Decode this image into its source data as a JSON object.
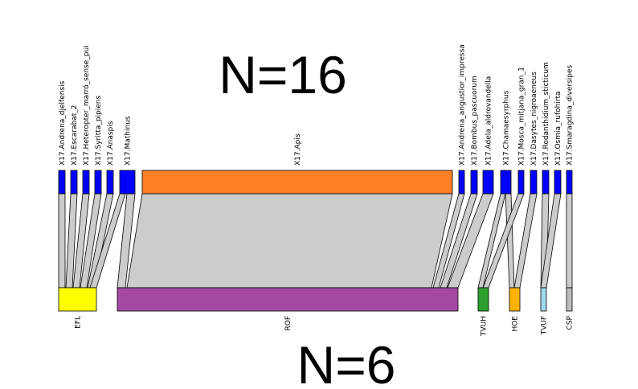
{
  "title_top": "N=16",
  "title_bottom": "N=6",
  "colors": {
    "link": "#cccccc",
    "bar_border": "#000000",
    "top_default": "#0000ff"
  },
  "top_nodes": [
    {
      "label": "X17.Andrena_djelfensis",
      "color": "#0000ff"
    },
    {
      "label": "X17.Escarabat_2",
      "color": "#0000ff"
    },
    {
      "label": "X17.Heteropter_marró_sense_pui",
      "color": "#0000ff"
    },
    {
      "label": "X17.Syritta_pipiens",
      "color": "#0000ff"
    },
    {
      "label": "X17.Anaspis",
      "color": "#0000ff"
    },
    {
      "label": "X17.Mathinus",
      "color": "#0000ff"
    },
    {
      "label": "X17.Apis",
      "color": "#ff7f24"
    },
    {
      "label": "X17.Andrena_angustior_impressa",
      "color": "#0000ff"
    },
    {
      "label": "X17.Bombus_pascuorum",
      "color": "#0000ff"
    },
    {
      "label": "X17.Adela_aldrovandella",
      "color": "#0000ff"
    },
    {
      "label": "X17.Chamaesyrphus",
      "color": "#0000ff"
    },
    {
      "label": "X17.Mosca_mitjana_gran_1",
      "color": "#0000ff"
    },
    {
      "label": "X17.Dasytes_nigroaeneus",
      "color": "#0000ff"
    },
    {
      "label": "X17.Rodanthidium_sticticum",
      "color": "#0000ff"
    },
    {
      "label": "X17.Osmia_rufohirta",
      "color": "#0000ff"
    },
    {
      "label": "X17.Smaragdina_diversipes",
      "color": "#0000ff"
    }
  ],
  "bottom_nodes": [
    {
      "label": "EFL",
      "color": "#ffff00"
    },
    {
      "label": "ROF",
      "color": "#a349a4"
    },
    {
      "label": "TVUH",
      "color": "#2ca02c"
    },
    {
      "label": "HOE",
      "color": "#ffb300"
    },
    {
      "label": "TVUF",
      "color": "#9fd8ee"
    },
    {
      "label": "CSP",
      "color": "#bdbdbd"
    }
  ]
}
